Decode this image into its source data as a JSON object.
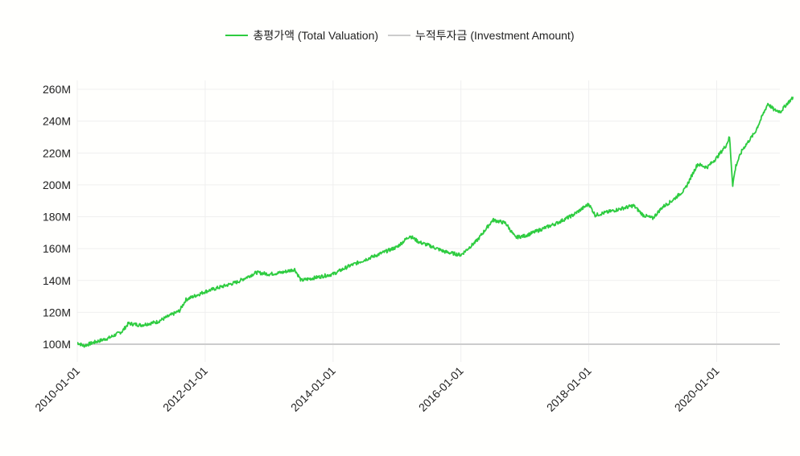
{
  "chart_data": {
    "type": "line",
    "title": "",
    "xlabel": "",
    "ylabel": "",
    "ylim": [
      100000000,
      260000000
    ],
    "xlim": [
      "2010-01-01",
      "2021-03-31"
    ],
    "grid": true,
    "legend_position": "top",
    "y_ticks": [
      "100M",
      "120M",
      "140M",
      "160M",
      "180M",
      "200M",
      "220M",
      "240M",
      "260M"
    ],
    "x_ticks": [
      "2010-01-01",
      "2012-01-01",
      "2014-01-01",
      "2016-01-01",
      "2018-01-01",
      "2020-01-01"
    ],
    "series": [
      {
        "name": "총평가액 (Total Valuation)",
        "color": "#2ecc40",
        "x": [
          2010.0,
          2010.1,
          2010.25,
          2010.5,
          2010.7,
          2010.8,
          2011.0,
          2011.25,
          2011.5,
          2011.6,
          2011.7,
          2012.0,
          2012.25,
          2012.5,
          2012.8,
          2013.0,
          2013.2,
          2013.4,
          2013.5,
          2013.75,
          2014.0,
          2014.25,
          2014.5,
          2014.75,
          2015.0,
          2015.2,
          2015.35,
          2015.5,
          2015.75,
          2016.0,
          2016.25,
          2016.5,
          2016.7,
          2016.85,
          2017.0,
          2017.25,
          2017.5,
          2017.75,
          2018.0,
          2018.1,
          2018.3,
          2018.5,
          2018.7,
          2018.85,
          2019.0,
          2019.15,
          2019.3,
          2019.5,
          2019.7,
          2019.85,
          2020.0,
          2020.15,
          2020.2,
          2020.25,
          2020.3,
          2020.4,
          2020.6,
          2020.8,
          2020.9,
          2021.0,
          2021.1,
          2021.2
        ],
        "values": [
          101,
          99,
          101,
          104,
          108,
          113,
          112,
          114,
          119,
          121,
          128,
          133,
          136,
          139,
          145,
          144,
          145,
          147,
          140,
          142,
          144,
          149,
          153,
          157,
          161,
          168,
          164,
          162,
          158,
          156,
          165,
          178,
          176,
          167,
          168,
          172,
          176,
          181,
          188,
          181,
          183,
          185,
          187,
          181,
          179,
          186,
          190,
          197,
          213,
          211,
          217,
          225,
          230,
          200,
          212,
          222,
          233,
          251,
          247,
          246,
          251,
          255
        ]
      },
      {
        "name": "누적투자금 (Investment Amount)",
        "color": "#cccccc",
        "x": [
          2010.0,
          2021.2
        ],
        "values": [
          100,
          100
        ]
      }
    ]
  },
  "legend": {
    "items": [
      {
        "label": "총평가액 (Total Valuation)",
        "color": "#2ecc40"
      },
      {
        "label": "누적투자금 (Investment Amount)",
        "color": "#cccccc"
      }
    ]
  }
}
